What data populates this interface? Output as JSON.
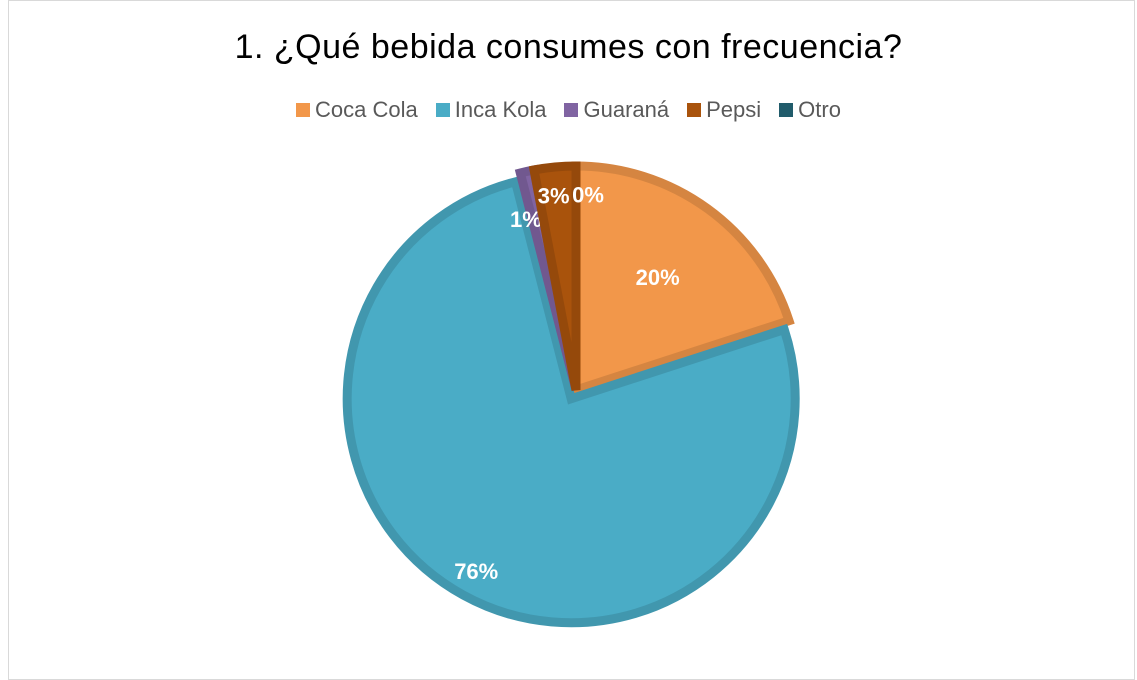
{
  "chart_data": {
    "type": "pie",
    "title": "1. ¿Qué bebida consumes con frecuencia?",
    "categories": [
      "Coca Cola",
      "Inca Kola",
      "Guaraná",
      "Pepsi",
      "Otro"
    ],
    "values": [
      20,
      76,
      1,
      3,
      0
    ],
    "data_labels": [
      "20%",
      "76%",
      "1%",
      "3%",
      "0%"
    ],
    "colors": [
      "#f2974a",
      "#4aacc6",
      "#8064a2",
      "#a9530c",
      "#215c6b"
    ],
    "exploded_slice": "Inca Kola",
    "legend_position": "top"
  }
}
